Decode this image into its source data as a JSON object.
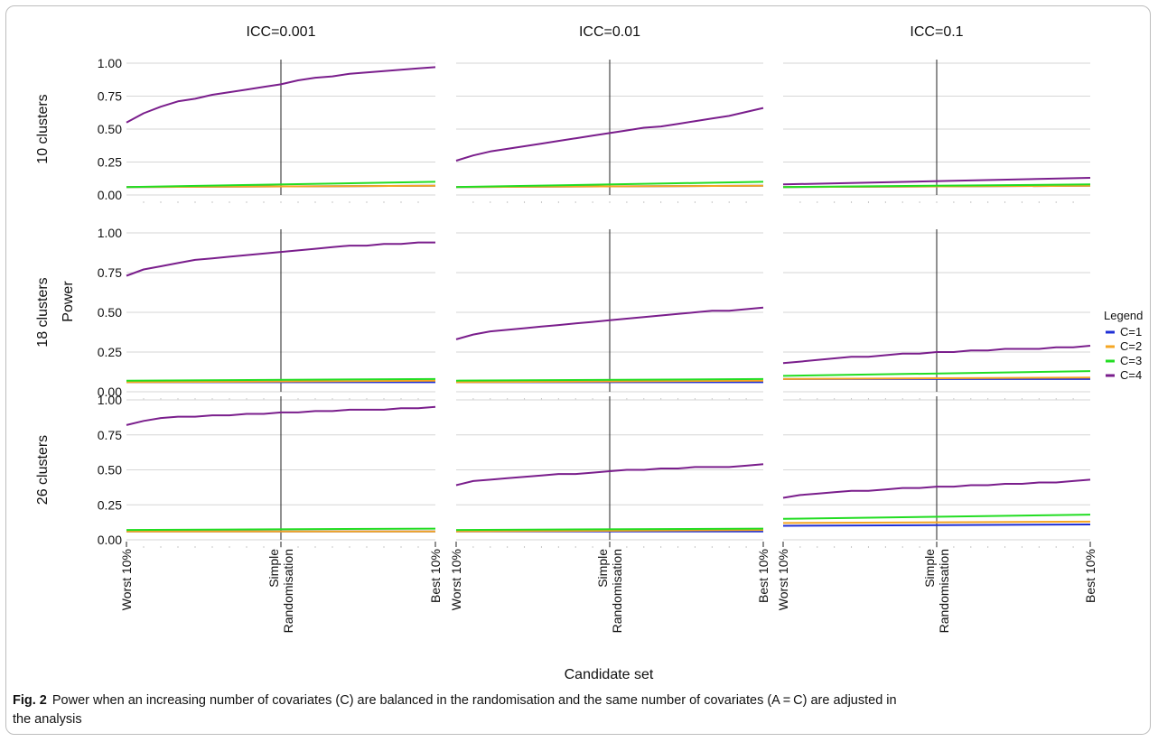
{
  "chart_data": {
    "type": "line",
    "ylabel": "Power",
    "xlabel": "Candidate set",
    "x_ticks": [
      "Worst 10%",
      "Simple\nRandomisation",
      "Best 10%"
    ],
    "y_ticks": [
      "0.00",
      "0.25",
      "0.50",
      "0.75",
      "1.00"
    ],
    "ylim": [
      0,
      1
    ],
    "vertical_line_at": "Simple Randomisation",
    "grid": true,
    "legend": {
      "title": "Legend",
      "placement": "right",
      "entries": [
        {
          "name": "C=1",
          "color": "#1f2fd6"
        },
        {
          "name": "C=2",
          "color": "#f5a623"
        },
        {
          "name": "C=3",
          "color": "#22dd22"
        },
        {
          "name": "C=4",
          "color": "#7a1e8c"
        }
      ]
    },
    "columns": [
      "ICC=0.001",
      "ICC=0.01",
      "ICC=0.1"
    ],
    "rows": [
      "10 clusters",
      "18 clusters",
      "26 clusters"
    ],
    "panels": [
      [
        {
          "series": {
            "C=1": [
              0.06,
              0.07
            ],
            "C=2": [
              0.06,
              0.07
            ],
            "C=3": [
              0.06,
              0.1
            ],
            "C=4": [
              0.55,
              0.62,
              0.67,
              0.71,
              0.73,
              0.76,
              0.78,
              0.8,
              0.82,
              0.84,
              0.87,
              0.89,
              0.9,
              0.92,
              0.93,
              0.94,
              0.95,
              0.96,
              0.97
            ]
          }
        },
        {
          "series": {
            "C=1": [
              0.06,
              0.07
            ],
            "C=2": [
              0.06,
              0.07
            ],
            "C=3": [
              0.06,
              0.1
            ],
            "C=4": [
              0.26,
              0.3,
              0.33,
              0.35,
              0.37,
              0.39,
              0.41,
              0.43,
              0.45,
              0.47,
              0.49,
              0.51,
              0.52,
              0.54,
              0.56,
              0.58,
              0.6,
              0.63,
              0.66
            ]
          }
        },
        {
          "series": {
            "C=1": [
              0.06,
              0.07
            ],
            "C=2": [
              0.06,
              0.07
            ],
            "C=3": [
              0.06,
              0.08
            ],
            "C=4": [
              0.08,
              0.13
            ]
          }
        }
      ],
      [
        {
          "series": {
            "C=1": [
              0.06,
              0.06
            ],
            "C=2": [
              0.06,
              0.07
            ],
            "C=3": [
              0.07,
              0.08
            ],
            "C=4": [
              0.73,
              0.77,
              0.79,
              0.81,
              0.83,
              0.84,
              0.85,
              0.86,
              0.87,
              0.88,
              0.89,
              0.9,
              0.91,
              0.92,
              0.92,
              0.93,
              0.93,
              0.94,
              0.94
            ]
          }
        },
        {
          "series": {
            "C=1": [
              0.06,
              0.06
            ],
            "C=2": [
              0.06,
              0.07
            ],
            "C=3": [
              0.07,
              0.08
            ],
            "C=4": [
              0.33,
              0.36,
              0.38,
              0.39,
              0.4,
              0.41,
              0.42,
              0.43,
              0.44,
              0.45,
              0.46,
              0.47,
              0.48,
              0.49,
              0.5,
              0.51,
              0.51,
              0.52,
              0.53
            ]
          }
        },
        {
          "series": {
            "C=1": [
              0.08,
              0.08
            ],
            "C=2": [
              0.08,
              0.09
            ],
            "C=3": [
              0.1,
              0.13
            ],
            "C=4": [
              0.18,
              0.19,
              0.2,
              0.21,
              0.22,
              0.22,
              0.23,
              0.24,
              0.24,
              0.25,
              0.25,
              0.26,
              0.26,
              0.27,
              0.27,
              0.27,
              0.28,
              0.28,
              0.29
            ]
          }
        }
      ],
      [
        {
          "series": {
            "C=1": [
              0.06,
              0.06
            ],
            "C=2": [
              0.06,
              0.06
            ],
            "C=3": [
              0.07,
              0.08
            ],
            "C=4": [
              0.82,
              0.85,
              0.87,
              0.88,
              0.88,
              0.89,
              0.89,
              0.9,
              0.9,
              0.91,
              0.91,
              0.92,
              0.92,
              0.93,
              0.93,
              0.93,
              0.94,
              0.94,
              0.95
            ]
          }
        },
        {
          "series": {
            "C=1": [
              0.06,
              0.06
            ],
            "C=2": [
              0.06,
              0.07
            ],
            "C=3": [
              0.07,
              0.08
            ],
            "C=4": [
              0.39,
              0.42,
              0.43,
              0.44,
              0.45,
              0.46,
              0.47,
              0.47,
              0.48,
              0.49,
              0.5,
              0.5,
              0.51,
              0.51,
              0.52,
              0.52,
              0.52,
              0.53,
              0.54
            ]
          }
        },
        {
          "series": {
            "C=1": [
              0.1,
              0.11
            ],
            "C=2": [
              0.12,
              0.13
            ],
            "C=3": [
              0.15,
              0.18
            ],
            "C=4": [
              0.3,
              0.32,
              0.33,
              0.34,
              0.35,
              0.35,
              0.36,
              0.37,
              0.37,
              0.38,
              0.38,
              0.39,
              0.39,
              0.4,
              0.4,
              0.41,
              0.41,
              0.42,
              0.43
            ]
          }
        }
      ]
    ]
  },
  "caption": {
    "label": "Fig. 2",
    "text": "Power when an increasing number of covariates (C) are balanced in the randomisation and the same number of covariates (A = C) are adjusted in the analysis"
  }
}
